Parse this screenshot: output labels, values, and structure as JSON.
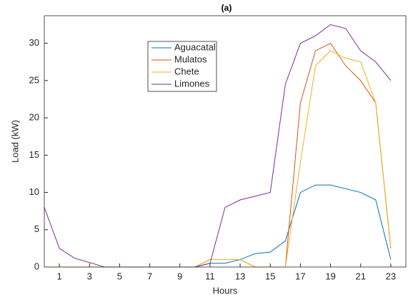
{
  "chart_data": {
    "type": "line",
    "title": "(a)",
    "xlabel": "Hours",
    "ylabel": "Load (kW)",
    "x": [
      0,
      1,
      2,
      3,
      4,
      5,
      6,
      7,
      8,
      9,
      10,
      11,
      12,
      13,
      14,
      15,
      16,
      17,
      18,
      19,
      20,
      21,
      22,
      23
    ],
    "series": [
      {
        "name": "Aguacatal",
        "color": "#0072bd",
        "values": [
          0,
          0,
          0,
          0,
          0,
          0,
          0,
          0,
          0,
          0,
          0,
          0.5,
          0.5,
          1,
          1.8,
          2,
          3.5,
          10,
          11,
          11,
          10.5,
          10,
          9,
          1
        ]
      },
      {
        "name": "Mulatos",
        "color": "#d95319",
        "values": [
          0,
          0,
          0,
          0,
          0,
          0,
          0,
          0,
          0,
          0,
          0,
          1,
          1,
          1,
          0,
          0,
          0,
          22,
          29,
          30,
          27,
          25,
          22,
          2.5
        ]
      },
      {
        "name": "Chete",
        "color": "#edb120",
        "values": [
          0,
          0,
          0,
          0,
          0,
          0,
          0,
          0,
          0,
          0,
          0,
          1,
          1,
          1,
          0,
          0,
          0,
          14,
          27,
          29,
          28,
          27.5,
          22,
          2.5
        ]
      },
      {
        "name": "Limones",
        "color": "#7e2f8e",
        "values": [
          8,
          2.5,
          1.2,
          0.6,
          0,
          0,
          0,
          0,
          0,
          0,
          0,
          0.5,
          8,
          9,
          9.5,
          10,
          24.5,
          30,
          31,
          32.5,
          32,
          29,
          27.5,
          25
        ]
      }
    ],
    "xlim": [
      0,
      24
    ],
    "xticks": [
      1,
      3,
      5,
      7,
      9,
      11,
      13,
      15,
      17,
      19,
      21,
      23
    ],
    "ylim": [
      0,
      33.7
    ],
    "yticks": [
      0,
      5,
      10,
      15,
      20,
      25,
      30
    ],
    "grid": false,
    "legend": "upper left"
  }
}
